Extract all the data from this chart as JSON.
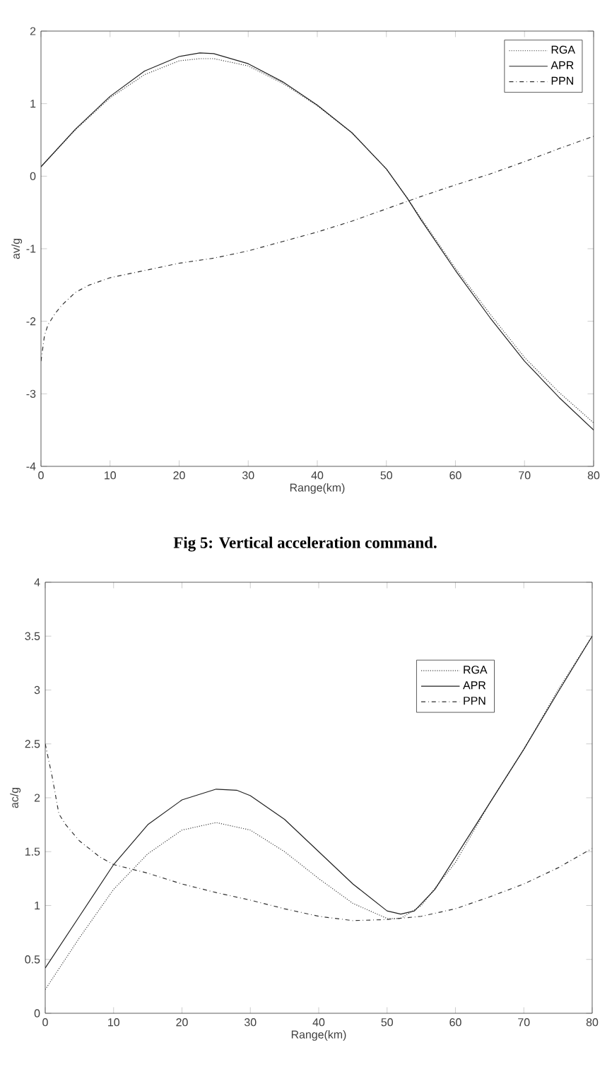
{
  "chart_data": [
    {
      "type": "line",
      "xlabel": "Range(km)",
      "ylabel": "av/g",
      "x": [
        0,
        5,
        10,
        15,
        20,
        23,
        25,
        30,
        35,
        40,
        45,
        50,
        53,
        55,
        60,
        65,
        70,
        75,
        80
      ],
      "series": [
        {
          "name": "RGA",
          "color": "#404040",
          "line_style": "dotted",
          "values": [
            0.13,
            0.64,
            1.08,
            1.4,
            1.59,
            1.62,
            1.62,
            1.52,
            1.28,
            0.97,
            0.6,
            0.1,
            -0.3,
            -0.58,
            -1.27,
            -1.9,
            -2.5,
            -2.98,
            -3.4
          ]
        },
        {
          "name": "APR",
          "color": "#202020",
          "line_style": "solid",
          "values": [
            0.13,
            0.65,
            1.1,
            1.45,
            1.65,
            1.7,
            1.69,
            1.55,
            1.3,
            0.98,
            0.6,
            0.1,
            -0.3,
            -0.6,
            -1.3,
            -1.95,
            -2.55,
            -3.05,
            -3.5
          ]
        },
        {
          "name": "PPN",
          "color": "#303030",
          "line_style": "dashdot",
          "x": [
            0,
            0.5,
            1,
            2,
            3,
            5,
            7,
            10,
            15,
            20,
            25,
            30,
            35,
            40,
            45,
            50,
            55,
            60,
            65,
            70,
            75,
            80
          ],
          "values": [
            -2.55,
            -2.2,
            -2.05,
            -1.9,
            -1.78,
            -1.6,
            -1.5,
            -1.4,
            -1.3,
            -1.2,
            -1.13,
            -1.03,
            -0.9,
            -0.77,
            -0.62,
            -0.45,
            -0.28,
            -0.12,
            0.03,
            0.2,
            0.38,
            0.55
          ]
        }
      ],
      "xlim": [
        0,
        80
      ],
      "xticks": [
        0,
        10,
        20,
        30,
        40,
        50,
        60,
        70,
        80
      ],
      "ylim": [
        -4,
        2
      ],
      "yticks": [
        -4,
        -3,
        -2,
        -1,
        0,
        1,
        2
      ],
      "legend": "top right",
      "grid": false,
      "annotations": [
        "Fig 5: Vertical acceleration command."
      ]
    },
    {
      "type": "line",
      "xlabel": "Range(km)",
      "ylabel": "ac/g",
      "x": [
        0,
        5,
        10,
        15,
        20,
        25,
        28,
        30,
        35,
        40,
        45,
        50,
        52,
        54,
        57,
        60,
        65,
        70,
        75,
        80
      ],
      "series": [
        {
          "name": "RGA",
          "color": "#404040",
          "line_style": "dotted",
          "x": [
            0,
            5,
            10,
            15,
            20,
            25,
            30,
            35,
            40,
            45,
            50,
            52,
            55,
            60,
            65,
            70,
            75,
            80
          ],
          "values": [
            0.22,
            0.7,
            1.15,
            1.48,
            1.7,
            1.77,
            1.7,
            1.5,
            1.25,
            1.02,
            0.88,
            0.88,
            1.0,
            1.4,
            1.95,
            2.45,
            3.0,
            3.5
          ]
        },
        {
          "name": "APR",
          "color": "#202020",
          "line_style": "solid",
          "values": [
            0.42,
            0.9,
            1.38,
            1.75,
            1.98,
            2.08,
            2.07,
            2.02,
            1.8,
            1.5,
            1.2,
            0.95,
            0.92,
            0.95,
            1.15,
            1.45,
            1.95,
            2.45,
            2.98,
            3.5
          ]
        },
        {
          "name": "PPN",
          "color": "#303030",
          "line_style": "dashdot",
          "x": [
            0,
            1,
            2,
            3,
            5,
            8,
            10,
            15,
            20,
            25,
            30,
            35,
            40,
            45,
            50,
            55,
            60,
            65,
            70,
            75,
            80
          ],
          "values": [
            2.5,
            2.2,
            1.85,
            1.75,
            1.6,
            1.45,
            1.38,
            1.3,
            1.2,
            1.12,
            1.05,
            0.97,
            0.9,
            0.86,
            0.87,
            0.9,
            0.97,
            1.08,
            1.2,
            1.35,
            1.53
          ]
        }
      ],
      "xlim": [
        0,
        80
      ],
      "xticks": [
        0,
        10,
        20,
        30,
        40,
        50,
        60,
        70,
        80
      ],
      "ylim": [
        0,
        4
      ],
      "yticks": [
        0,
        0.5,
        1,
        1.5,
        2,
        2.5,
        3,
        3.5,
        4
      ],
      "legend": "top",
      "grid": false
    }
  ]
}
